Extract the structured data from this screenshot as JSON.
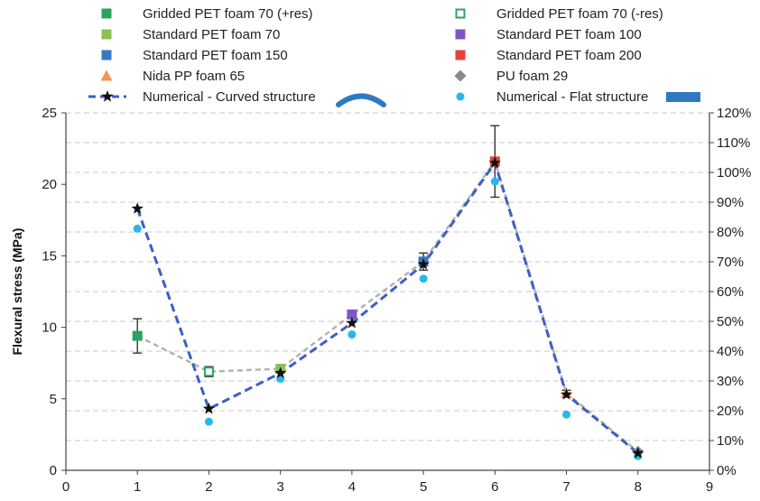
{
  "chart_data": {
    "type": "scatter",
    "xlim": [
      0,
      9
    ],
    "ylim": [
      0,
      25
    ],
    "y2lim": [
      0,
      120
    ],
    "ylabel": "Flexural stress (MPa)",
    "grid": "horizontal-dashed",
    "legend_position": "top",
    "x_ticks": [
      "0",
      "1",
      "2",
      "3",
      "4",
      "5",
      "6",
      "7",
      "8",
      "9"
    ],
    "y_ticks": [
      "0",
      "5",
      "10",
      "15",
      "20",
      "25"
    ],
    "y2_ticks": [
      "0%",
      "10%",
      "20%",
      "30%",
      "40%",
      "50%",
      "60%",
      "70%",
      "80%",
      "90%",
      "100%",
      "110%",
      "120%"
    ],
    "experimental_connector": {
      "color": "#b3b3b3",
      "x": [
        1,
        2,
        3,
        4,
        5,
        6,
        7,
        8
      ],
      "y": [
        9.4,
        6.9,
        7.1,
        10.9,
        14.6,
        21.6,
        5.4,
        1.3
      ]
    },
    "series": [
      {
        "name": "Gridded PET foam 70 (+res)",
        "marker": "square",
        "color": "#2ca25f",
        "x": [
          1
        ],
        "y": [
          9.4
        ],
        "err": [
          1.2
        ]
      },
      {
        "name": "Gridded PET foam 70 (-res)",
        "marker": "square-open",
        "color": "#2ca25f",
        "x": [
          2
        ],
        "y": [
          6.9
        ],
        "err": [
          0.35
        ]
      },
      {
        "name": "Standard PET foam 70",
        "marker": "square",
        "color": "#8cc152",
        "x": [
          3
        ],
        "y": [
          7.1
        ],
        "err": [
          0.15
        ]
      },
      {
        "name": "Standard PET foam 100",
        "marker": "square",
        "color": "#7e57c2",
        "x": [
          4
        ],
        "y": [
          10.9
        ],
        "err": [
          0.2
        ]
      },
      {
        "name": "Standard PET foam 150",
        "marker": "square",
        "color": "#3a78c2",
        "x": [
          5
        ],
        "y": [
          14.6
        ],
        "err": [
          0.6
        ]
      },
      {
        "name": "Standard PET foam 200",
        "marker": "square",
        "color": "#e8403a",
        "x": [
          6
        ],
        "y": [
          21.6
        ],
        "err": [
          2.5
        ]
      },
      {
        "name": "Nida PP foam 65",
        "marker": "triangle",
        "color": "#f0965a",
        "x": [
          7
        ],
        "y": [
          5.4
        ],
        "err": [
          0.2
        ]
      },
      {
        "name": "PU foam 29",
        "marker": "diamond",
        "color": "#8a8a8a",
        "x": [
          8
        ],
        "y": [
          1.3
        ],
        "err": [
          0.1
        ]
      },
      {
        "name": "Numerical - Curved structure",
        "marker": "star",
        "color": "#3d5fc4",
        "line": "dashed",
        "x": [
          1,
          2,
          3,
          4,
          5,
          6,
          7,
          8
        ],
        "y": [
          18.3,
          4.3,
          6.8,
          10.3,
          14.4,
          21.5,
          5.3,
          1.2
        ]
      },
      {
        "name": "Numerical - Flat structure",
        "marker": "circle",
        "color": "#29b6ee",
        "x": [
          1,
          2,
          3,
          4,
          5,
          6,
          7,
          8
        ],
        "y": [
          16.9,
          3.4,
          6.4,
          9.5,
          13.4,
          20.2,
          3.9,
          1.0
        ]
      }
    ]
  }
}
